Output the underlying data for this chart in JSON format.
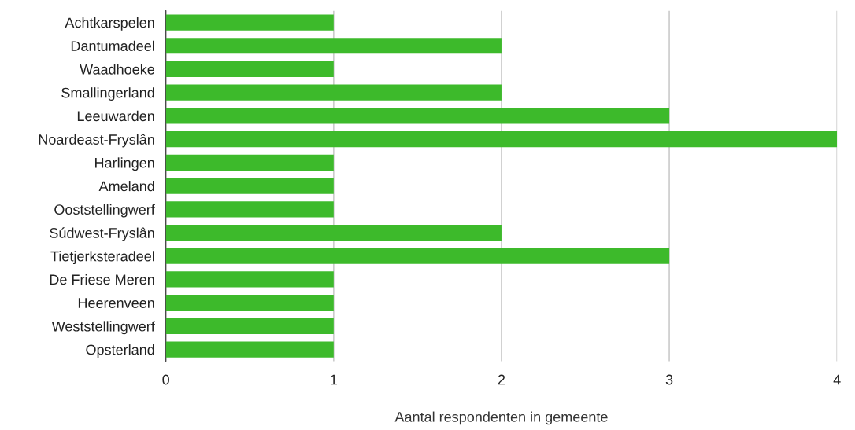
{
  "chart_data": {
    "type": "bar",
    "orientation": "horizontal",
    "xlabel": "Aantal respondenten in gemeente",
    "categories": [
      "Achtkarspelen",
      "Dantumadeel",
      "Waadhoeke",
      "Smallingerland",
      "Leeuwarden",
      "Noardeast-Fryslân",
      "Harlingen",
      "Ameland",
      "Ooststellingwerf",
      "Súdwest-Fryslân",
      "Tietjerksteradeel",
      "De Friese Meren",
      "Heerenveen",
      "Weststellingwerf",
      "Opsterland"
    ],
    "values": [
      1,
      2,
      1,
      2,
      3,
      4,
      1,
      1,
      1,
      2,
      3,
      1,
      1,
      1,
      1
    ],
    "color": "#3dba2b",
    "xlim": [
      0,
      4
    ],
    "xticks": [
      0,
      1,
      2,
      3,
      4
    ],
    "grid": "x"
  }
}
